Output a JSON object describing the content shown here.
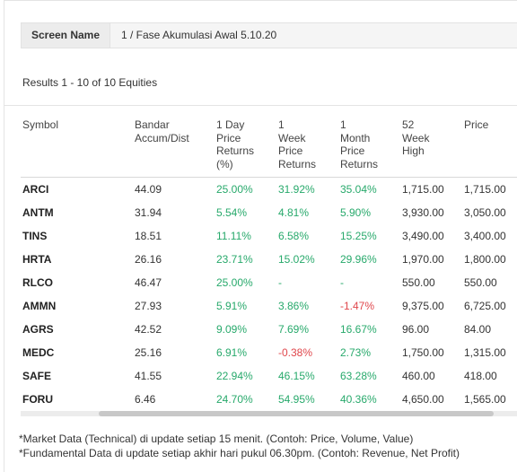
{
  "screen": {
    "label": "Screen Name",
    "value": "1 / Fase Akumulasi Awal 5.10.20"
  },
  "results_text": "Results 1 - 10 of 10 Equities",
  "columns": [
    "Symbol",
    "Bandar\nAccum/Dist",
    "1 Day\nPrice\nReturns\n(%)",
    "1\nWeek\nPrice\nReturns",
    "1\nMonth\nPrice\nReturns",
    "52\nWeek\nHigh",
    "Price"
  ],
  "rows": [
    {
      "symbol": "ARCI",
      "bandar": "44.09",
      "day": "25.00%",
      "week": "31.92%",
      "month": "35.04%",
      "high": "1,715.00",
      "price": "1,715.00"
    },
    {
      "symbol": "ANTM",
      "bandar": "31.94",
      "day": "5.54%",
      "week": "4.81%",
      "month": "5.90%",
      "high": "3,930.00",
      "price": "3,050.00"
    },
    {
      "symbol": "TINS",
      "bandar": "18.51",
      "day": "11.11%",
      "week": "6.58%",
      "month": "15.25%",
      "high": "3,490.00",
      "price": "3,400.00"
    },
    {
      "symbol": "HRTA",
      "bandar": "26.16",
      "day": "23.71%",
      "week": "15.02%",
      "month": "29.96%",
      "high": "1,970.00",
      "price": "1,800.00"
    },
    {
      "symbol": "RLCO",
      "bandar": "46.47",
      "day": "25.00%",
      "week": "-",
      "month": "-",
      "high": "550.00",
      "price": "550.00"
    },
    {
      "symbol": "AMMN",
      "bandar": "27.93",
      "day": "5.91%",
      "week": "3.86%",
      "month": "-1.47%",
      "high": "9,375.00",
      "price": "6,725.00"
    },
    {
      "symbol": "AGRS",
      "bandar": "42.52",
      "day": "9.09%",
      "week": "7.69%",
      "month": "16.67%",
      "high": "96.00",
      "price": "84.00"
    },
    {
      "symbol": "MEDC",
      "bandar": "25.16",
      "day": "6.91%",
      "week": "-0.38%",
      "month": "2.73%",
      "high": "1,750.00",
      "price": "1,315.00"
    },
    {
      "symbol": "SAFE",
      "bandar": "41.55",
      "day": "22.94%",
      "week": "46.15%",
      "month": "63.28%",
      "high": "460.00",
      "price": "418.00"
    },
    {
      "symbol": "FORU",
      "bandar": "6.46",
      "day": "24.70%",
      "week": "54.95%",
      "month": "40.36%",
      "high": "4,650.00",
      "price": "1,565.00"
    }
  ],
  "notes": [
    "*Market Data (Technical) di update setiap 15 menit. (Contoh: Price, Volume, Value)",
    "*Fundamental Data di update setiap akhir hari pukul 06.30pm. (Contoh: Revenue, Net Profit)"
  ],
  "colors": {
    "positive": "#27a96b",
    "negative": "#e0474c",
    "text": "#333333",
    "bar_bg": "#f5f5f5"
  }
}
